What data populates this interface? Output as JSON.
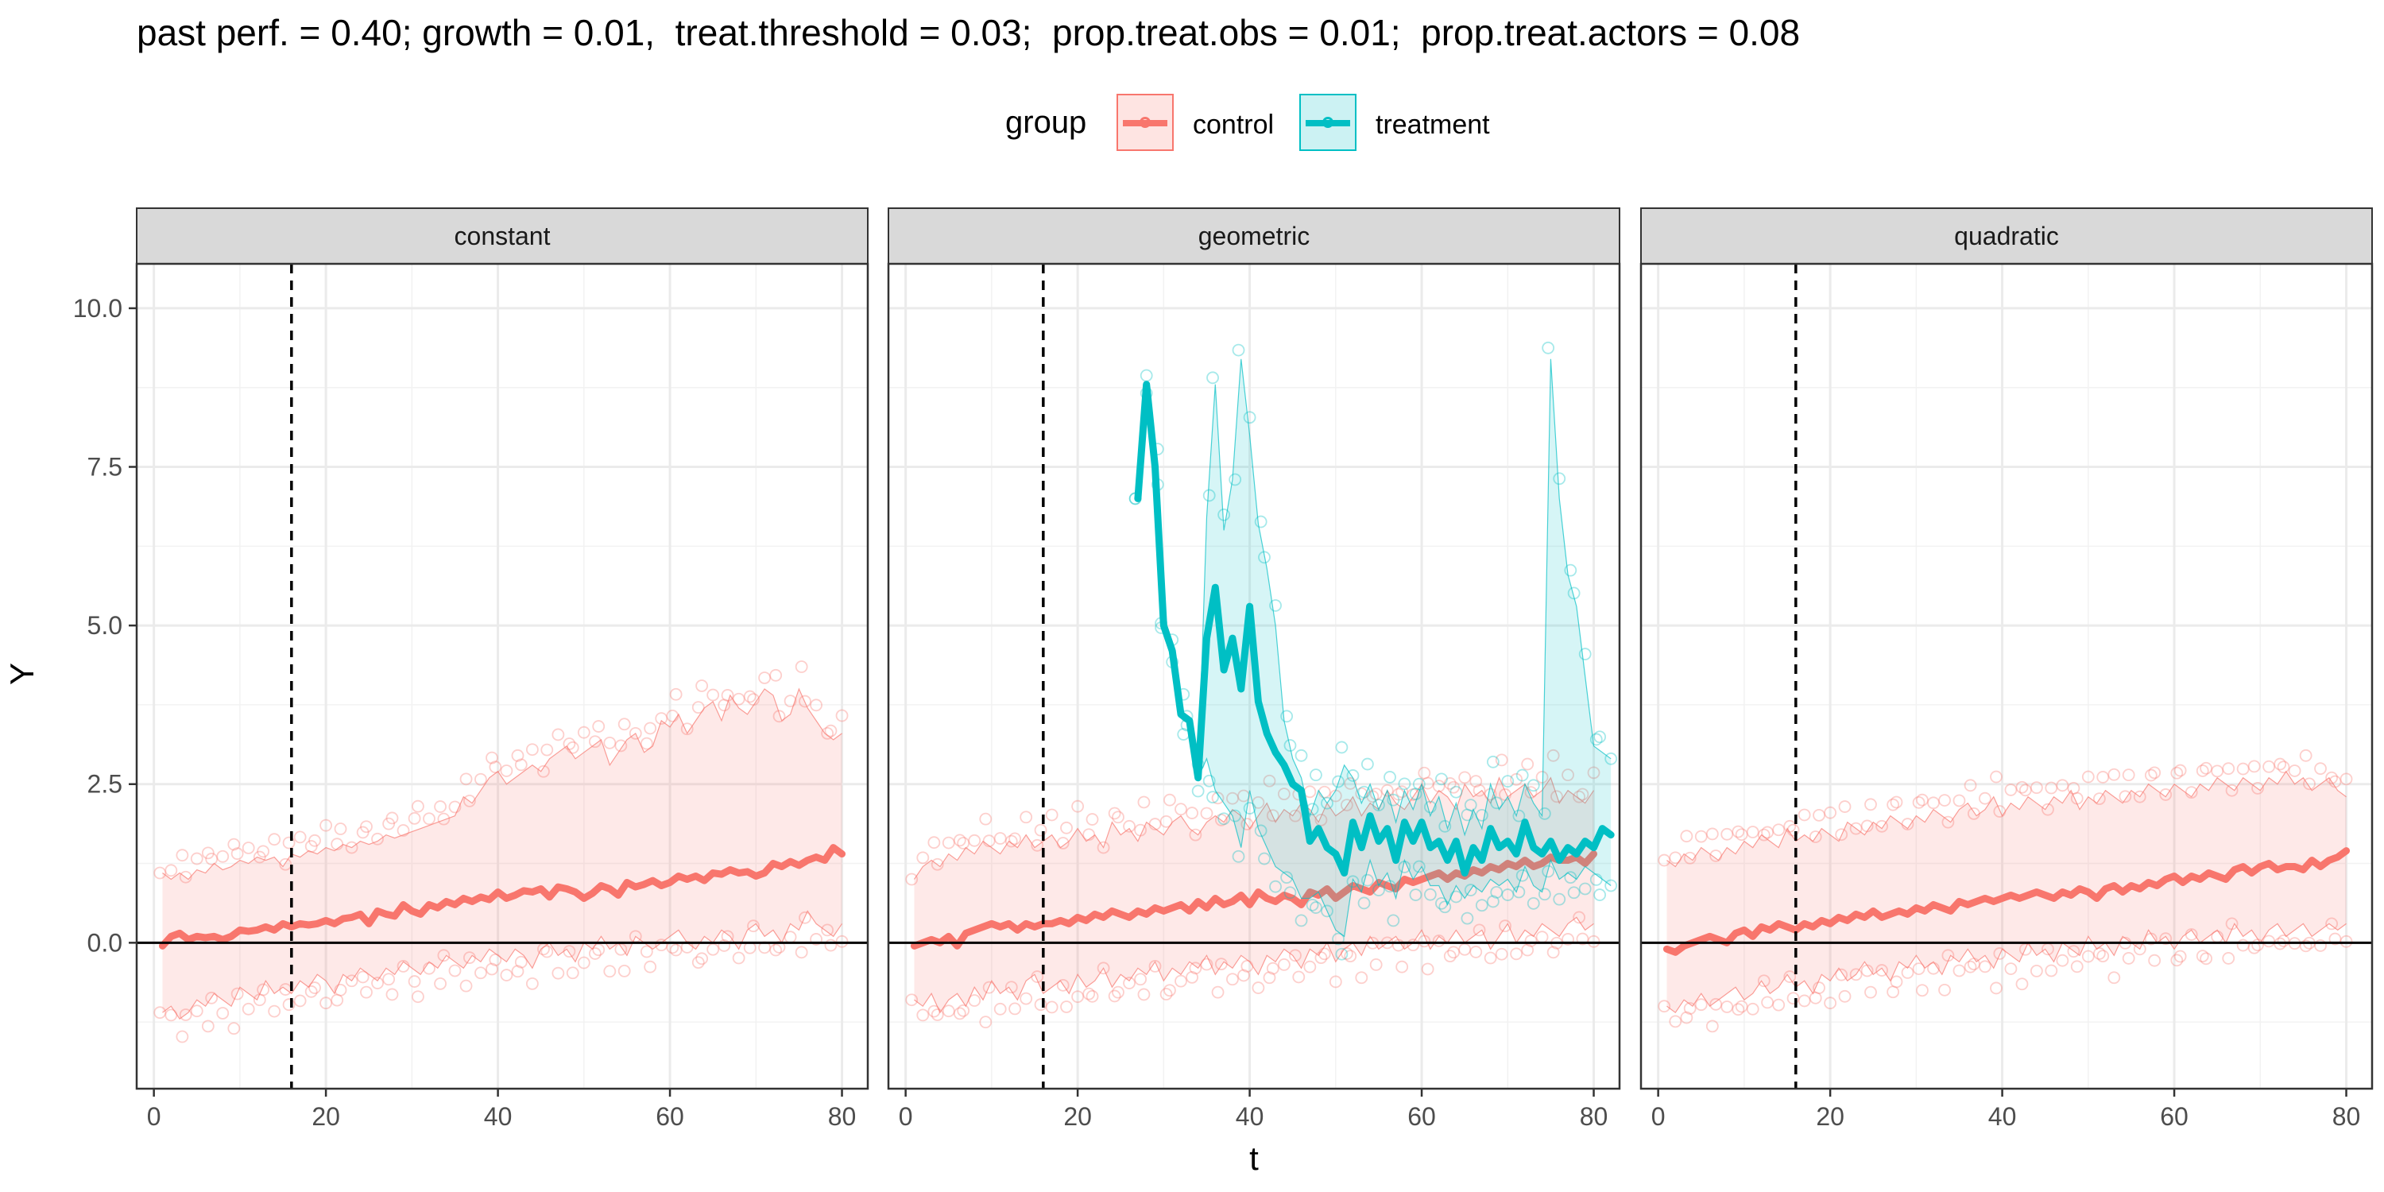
{
  "chart_data": {
    "type": "line",
    "title": "past perf. = 0.40; growth = 0.01,  treat.threshold = 0.03;  prop.treat.obs = 0.01;  prop.treat.actors = 0.08",
    "xlabel": "t",
    "ylabel": "Y",
    "xlim": [
      -2,
      83
    ],
    "ylim": [
      -2.3,
      10.7
    ],
    "x_ticks": [
      0,
      20,
      40,
      60,
      80
    ],
    "y_ticks": [
      0.0,
      2.5,
      5.0,
      7.5,
      10.0
    ],
    "y_tick_labels": [
      "0.0",
      "2.5",
      "5.0",
      "7.5",
      "10.0"
    ],
    "grid": true,
    "vline_x": 16,
    "hline_y": 0,
    "legend": {
      "title": "group",
      "position": "top",
      "entries": [
        {
          "label": "control",
          "color": "#F8766D"
        },
        {
          "label": "treatment",
          "color": "#00BFC4"
        }
      ]
    },
    "panels": [
      {
        "name": "constant",
        "series": [
          {
            "name": "control",
            "x_start": 1,
            "mean": [
              -0.05,
              0.1,
              0.15,
              0.05,
              0.1,
              0.08,
              0.1,
              0.05,
              0.1,
              0.2,
              0.18,
              0.2,
              0.25,
              0.2,
              0.3,
              0.25,
              0.3,
              0.28,
              0.3,
              0.35,
              0.3,
              0.38,
              0.4,
              0.45,
              0.3,
              0.5,
              0.45,
              0.42,
              0.6,
              0.5,
              0.45,
              0.6,
              0.55,
              0.65,
              0.6,
              0.7,
              0.65,
              0.72,
              0.68,
              0.8,
              0.7,
              0.75,
              0.82,
              0.8,
              0.85,
              0.72,
              0.88,
              0.85,
              0.8,
              0.7,
              0.78,
              0.9,
              0.85,
              0.75,
              0.95,
              0.88,
              0.92,
              0.98,
              0.9,
              0.95,
              1.05,
              1.0,
              1.05,
              0.98,
              1.1,
              1.08,
              1.15,
              1.1,
              1.12,
              1.05,
              1.1,
              1.25,
              1.2,
              1.28,
              1.22,
              1.3,
              1.35,
              1.3,
              1.5,
              1.4
            ],
            "upper": [
              1.1,
              1.0,
              1.1,
              1.0,
              1.15,
              1.1,
              1.25,
              1.15,
              1.2,
              1.3,
              1.25,
              1.35,
              1.3,
              1.35,
              1.2,
              1.4,
              1.35,
              1.45,
              1.4,
              1.5,
              1.45,
              1.55,
              1.5,
              1.6,
              1.55,
              1.6,
              1.7,
              1.65,
              1.7,
              1.75,
              1.8,
              1.85,
              1.9,
              1.95,
              2.0,
              2.3,
              2.2,
              2.4,
              2.6,
              2.7,
              2.5,
              2.6,
              2.7,
              2.8,
              2.7,
              2.9,
              3.0,
              3.1,
              2.9,
              3.0,
              3.1,
              3.2,
              2.8,
              3.0,
              3.2,
              3.3,
              3.0,
              3.1,
              3.5,
              3.4,
              3.6,
              3.3,
              3.5,
              3.7,
              3.8,
              3.5,
              3.9,
              3.7,
              3.6,
              3.8,
              4.0,
              3.9,
              3.5,
              3.6,
              4.0,
              3.7,
              3.5,
              3.3,
              3.2,
              3.3
            ],
            "lower": [
              -1.1,
              -1.0,
              -1.2,
              -1.1,
              -0.9,
              -1.0,
              -0.8,
              -0.9,
              -1.0,
              -0.7,
              -0.8,
              -0.9,
              -0.6,
              -0.8,
              -0.7,
              -0.8,
              -0.6,
              -0.7,
              -0.5,
              -0.6,
              -0.8,
              -0.5,
              -0.6,
              -0.4,
              -0.5,
              -0.6,
              -0.4,
              -0.5,
              -0.3,
              -0.4,
              -0.5,
              -0.3,
              -0.4,
              -0.2,
              -0.3,
              -0.4,
              -0.2,
              -0.3,
              -0.1,
              -0.2,
              -0.3,
              -0.1,
              -0.2,
              -0.4,
              -0.1,
              0.0,
              -0.2,
              -0.1,
              -0.3,
              0.0,
              -0.1,
              0.1,
              -0.1,
              0.0,
              -0.2,
              0.1,
              0.0,
              -0.1,
              0.0,
              0.1,
              0.2,
              0.0,
              -0.1,
              0.1,
              0.0,
              0.2,
              0.1,
              -0.1,
              0.2,
              0.3,
              0.1,
              0.2,
              0.0,
              0.3,
              0.2,
              0.5,
              0.3,
              0.2,
              0.1,
              0.3
            ]
          }
        ]
      },
      {
        "name": "geometric",
        "series": [
          {
            "name": "control",
            "x_start": 1,
            "mean": [
              -0.05,
              0.0,
              0.05,
              0.0,
              0.1,
              -0.05,
              0.15,
              0.2,
              0.25,
              0.3,
              0.25,
              0.3,
              0.2,
              0.3,
              0.25,
              0.3,
              0.3,
              0.35,
              0.3,
              0.4,
              0.35,
              0.45,
              0.4,
              0.5,
              0.45,
              0.4,
              0.5,
              0.45,
              0.55,
              0.5,
              0.55,
              0.6,
              0.5,
              0.65,
              0.55,
              0.7,
              0.6,
              0.65,
              0.75,
              0.6,
              0.8,
              0.7,
              0.65,
              0.75,
              0.7,
              0.6,
              0.8,
              0.75,
              0.85,
              0.7,
              0.8,
              0.9,
              0.85,
              0.8,
              0.95,
              0.9,
              0.85,
              1.0,
              0.95,
              1.0,
              1.05,
              1.1,
              1.0,
              1.1,
              1.05,
              1.15,
              1.1,
              1.2,
              1.15,
              1.25,
              1.2,
              1.3,
              1.2,
              1.25,
              1.35,
              1.3,
              1.3,
              1.35,
              1.25,
              1.4
            ],
            "upper": [
              1.0,
              1.2,
              1.3,
              1.2,
              1.4,
              1.3,
              1.5,
              1.4,
              1.6,
              1.5,
              1.4,
              1.6,
              1.5,
              1.7,
              1.5,
              1.6,
              1.7,
              1.5,
              1.6,
              1.8,
              1.6,
              1.7,
              1.5,
              1.9,
              1.7,
              1.8,
              1.6,
              1.9,
              1.8,
              1.7,
              1.9,
              2.0,
              1.8,
              1.7,
              1.9,
              2.0,
              1.9,
              2.1,
              2.0,
              1.8,
              2.0,
              2.2,
              1.9,
              2.1,
              2.0,
              2.2,
              2.1,
              1.9,
              2.2,
              2.0,
              2.1,
              2.3,
              2.0,
              2.2,
              2.1,
              2.4,
              2.2,
              2.1,
              2.3,
              2.5,
              2.2,
              2.4,
              2.3,
              2.1,
              2.5,
              2.3,
              2.4,
              2.2,
              2.6,
              2.3,
              2.4,
              2.5,
              2.3,
              2.4,
              2.6,
              2.2,
              2.4,
              2.3,
              2.2,
              2.4
            ],
            "lower": [
              -0.9,
              -1.0,
              -0.8,
              -1.1,
              -0.9,
              -0.8,
              -1.0,
              -0.7,
              -0.9,
              -0.6,
              -0.8,
              -0.7,
              -0.9,
              -0.6,
              -0.5,
              -0.8,
              -0.7,
              -0.6,
              -0.8,
              -0.5,
              -0.7,
              -0.6,
              -0.4,
              -0.7,
              -0.5,
              -0.6,
              -0.4,
              -0.5,
              -0.3,
              -0.6,
              -0.4,
              -0.5,
              -0.3,
              -0.4,
              -0.2,
              -0.5,
              -0.3,
              -0.4,
              -0.2,
              -0.3,
              -0.5,
              -0.2,
              -0.3,
              -0.1,
              -0.2,
              -0.4,
              -0.1,
              -0.2,
              0.0,
              -0.3,
              -0.1,
              0.0,
              -0.2,
              0.1,
              -0.1,
              0.0,
              0.1,
              -0.1,
              0.0,
              0.2,
              -0.1,
              0.1,
              0.0,
              0.2,
              0.0,
              0.1,
              0.2,
              -0.1,
              0.1,
              0.3,
              0.0,
              0.2,
              0.1,
              0.3,
              0.2,
              0.1,
              0.3,
              0.4,
              0.2,
              0.3
            ]
          },
          {
            "name": "treatment",
            "x_start": 27,
            "mean": [
              7.0,
              8.8,
              7.5,
              5.0,
              4.6,
              3.6,
              3.5,
              2.6,
              4.8,
              5.6,
              4.3,
              4.8,
              4.0,
              5.3,
              3.8,
              3.3,
              3.0,
              2.8,
              2.5,
              2.4,
              1.6,
              1.8,
              1.5,
              1.4,
              1.1,
              1.9,
              1.5,
              2.0,
              1.6,
              1.8,
              1.3,
              1.9,
              1.6,
              1.9,
              1.5,
              1.6,
              1.3,
              1.6,
              1.1,
              1.5,
              1.3,
              1.8,
              1.5,
              1.6,
              1.4,
              1.9,
              1.5,
              1.4,
              1.6,
              1.3,
              1.5,
              1.4,
              1.6,
              1.5,
              1.8,
              1.7
            ],
            "upper": [
              7.0,
              8.8,
              7.5,
              5.0,
              4.6,
              3.6,
              3.5,
              2.6,
              6.7,
              8.8,
              6.5,
              7.3,
              9.2,
              8.0,
              6.6,
              5.9,
              5.0,
              3.5,
              2.9,
              2.6,
              2.0,
              2.4,
              2.2,
              2.4,
              2.8,
              2.6,
              2.2,
              2.5,
              2.1,
              2.4,
              1.9,
              2.4,
              2.1,
              2.5,
              2.0,
              2.3,
              1.8,
              2.2,
              1.7,
              2.1,
              1.8,
              2.5,
              2.1,
              2.3,
              2.0,
              2.5,
              2.2,
              2.0,
              9.2,
              7.0,
              5.8,
              5.3,
              4.2,
              3.1,
              3.0,
              2.9
            ],
            "lower": [
              7.0,
              8.8,
              7.5,
              5.0,
              4.6,
              3.6,
              3.5,
              2.6,
              2.9,
              2.4,
              2.2,
              2.0,
              1.5,
              2.4,
              1.8,
              1.5,
              1.2,
              1.1,
              1.0,
              0.7,
              0.7,
              0.8,
              0.5,
              0.2,
              0.1,
              1.0,
              0.8,
              1.3,
              0.9,
              1.1,
              0.7,
              1.3,
              1.0,
              1.2,
              0.9,
              0.9,
              0.6,
              0.9,
              0.7,
              0.9,
              0.8,
              1.0,
              0.9,
              1.0,
              0.8,
              1.2,
              0.9,
              0.8,
              1.3,
              1.0,
              1.1,
              1.0,
              1.2,
              1.1,
              1.0,
              0.9
            ]
          }
        ]
      },
      {
        "name": "quadratic",
        "series": [
          {
            "name": "control",
            "x_start": 1,
            "mean": [
              -0.1,
              -0.15,
              -0.05,
              0.0,
              0.05,
              0.1,
              0.05,
              0.0,
              0.15,
              0.2,
              0.1,
              0.25,
              0.2,
              0.3,
              0.25,
              0.2,
              0.3,
              0.25,
              0.35,
              0.3,
              0.4,
              0.35,
              0.45,
              0.4,
              0.5,
              0.4,
              0.45,
              0.5,
              0.45,
              0.55,
              0.5,
              0.6,
              0.55,
              0.5,
              0.65,
              0.6,
              0.65,
              0.7,
              0.65,
              0.7,
              0.75,
              0.7,
              0.75,
              0.8,
              0.75,
              0.7,
              0.8,
              0.75,
              0.85,
              0.8,
              0.7,
              0.85,
              0.9,
              0.8,
              0.9,
              0.85,
              0.95,
              0.9,
              1.0,
              1.05,
              0.95,
              1.05,
              1.0,
              1.1,
              1.05,
              1.0,
              1.15,
              1.2,
              1.1,
              1.2,
              1.25,
              1.15,
              1.2,
              1.2,
              1.15,
              1.3,
              1.2,
              1.3,
              1.35,
              1.45
            ],
            "upper": [
              1.3,
              1.2,
              1.4,
              1.3,
              1.5,
              1.4,
              1.3,
              1.5,
              1.4,
              1.6,
              1.5,
              1.7,
              1.6,
              1.5,
              1.8,
              1.6,
              1.7,
              1.6,
              1.8,
              1.7,
              1.6,
              1.9,
              1.8,
              1.7,
              1.9,
              1.8,
              2.0,
              1.9,
              1.8,
              2.0,
              1.9,
              2.1,
              2.0,
              1.9,
              2.1,
              2.2,
              2.0,
              2.1,
              2.3,
              2.0,
              2.2,
              2.1,
              2.3,
              2.2,
              2.1,
              2.3,
              2.2,
              2.4,
              2.1,
              2.3,
              2.2,
              2.4,
              2.3,
              2.2,
              2.4,
              2.3,
              2.5,
              2.4,
              2.3,
              2.5,
              2.4,
              2.3,
              2.5,
              2.4,
              2.6,
              2.5,
              2.4,
              2.6,
              2.5,
              2.4,
              2.6,
              2.5,
              2.7,
              2.5,
              2.6,
              2.4,
              2.5,
              2.6,
              2.4,
              2.3
            ],
            "lower": [
              -1.0,
              -1.1,
              -0.9,
              -1.0,
              -0.8,
              -1.0,
              -0.9,
              -0.8,
              -0.7,
              -0.9,
              -0.8,
              -0.6,
              -0.8,
              -0.7,
              -0.5,
              -0.7,
              -0.6,
              -0.8,
              -0.5,
              -0.6,
              -0.4,
              -0.6,
              -0.5,
              -0.3,
              -0.5,
              -0.4,
              -0.6,
              -0.3,
              -0.4,
              -0.2,
              -0.4,
              -0.3,
              -0.5,
              -0.2,
              -0.3,
              -0.1,
              -0.3,
              -0.2,
              -0.4,
              -0.1,
              -0.2,
              -0.3,
              0.0,
              -0.2,
              -0.1,
              -0.3,
              0.0,
              -0.1,
              -0.2,
              0.1,
              -0.1,
              0.0,
              -0.2,
              0.1,
              0.0,
              -0.1,
              0.2,
              0.0,
              0.1,
              -0.1,
              0.1,
              0.2,
              0.0,
              0.1,
              0.2,
              0.0,
              0.3,
              0.1,
              0.2,
              0.0,
              0.2,
              0.3,
              0.1,
              0.2,
              0.3,
              0.1,
              0.2,
              0.3,
              0.2,
              0.3
            ]
          }
        ]
      }
    ]
  }
}
